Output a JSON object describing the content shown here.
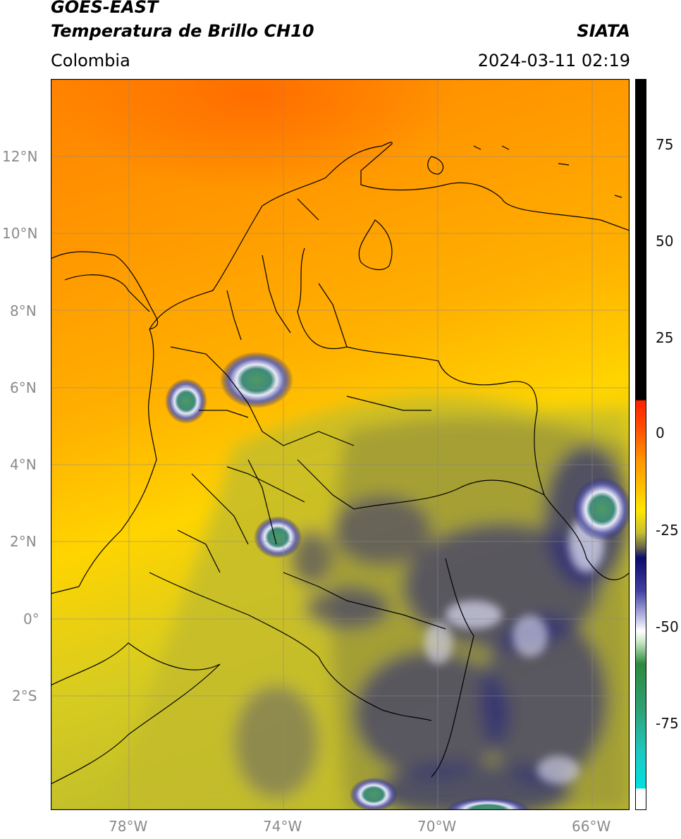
{
  "header": {
    "satellite": "GOES-EAST",
    "product": "Temperatura de Brillo CH10",
    "agency": "SIATA",
    "region": "Colombia",
    "datetime": "2024-03-11 02:19"
  },
  "map": {
    "lon_ticks": [
      "78°W",
      "74°W",
      "70°W",
      "66°W"
    ],
    "lat_ticks": [
      "12°N",
      "10°N",
      "8°N",
      "6°N",
      "4°N",
      "2°N",
      "0°",
      "2°S"
    ],
    "palette": {
      "warm_orange": "#ff8a00",
      "orange": "#ffa600",
      "yellow": "#ffd500",
      "olive": "#b8b830",
      "dark_blue": "#1c1c80",
      "white": "#f4f4ff",
      "green": "#4c9a60",
      "border": "#000000",
      "grid": "#8a8a8a"
    }
  },
  "colorbar": {
    "ticks": [
      "75",
      "50",
      "25",
      "0",
      "-25",
      "-50",
      "-75"
    ],
    "colors": {
      "black": "#000000",
      "red": "#ff2000",
      "orange": "#ff9400",
      "yellow": "#ffe600",
      "olive": "#9e9e38",
      "navy": "#0b0b6e",
      "white": "#ffffff",
      "green": "#2e8a3e",
      "cyan": "#00e0e0"
    }
  }
}
